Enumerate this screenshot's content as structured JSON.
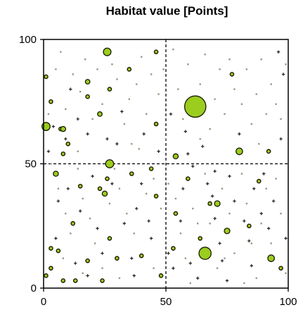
{
  "chart_data": {
    "type": "scatter",
    "title": "Habitat value [Points]",
    "xlabel": "",
    "ylabel": "",
    "xlim": [
      0,
      100
    ],
    "ylim": [
      0,
      100
    ],
    "x_ticks": [
      "0",
      "50",
      "100"
    ],
    "y_ticks": [
      "0",
      "50",
      "100"
    ],
    "reference_lines": [
      {
        "axis": "x",
        "value": 50,
        "style": "dashed"
      },
      {
        "axis": "y",
        "value": 50,
        "style": "dashed"
      }
    ],
    "grid": false,
    "legend": "none",
    "colors": {
      "fill": "#9ACD1E",
      "stroke": "#1a1a00",
      "dark_plus": "#1f1f1a",
      "light_dot": "#9a9a80"
    },
    "series": [
      {
        "marker": "large-circle",
        "points": [
          [
            26,
            95,
            1.5
          ],
          [
            62,
            73,
            4.2
          ],
          [
            1,
            65,
            1.6
          ],
          [
            27,
            50,
            1.6
          ],
          [
            66,
            14,
            2.4
          ],
          [
            80,
            55,
            1.3
          ],
          [
            93,
            12,
            1.3
          ],
          [
            8,
            64,
            1.0
          ],
          [
            71,
            34,
            1.1
          ],
          [
            75,
            23,
            1.1
          ],
          [
            54,
            53,
            1.0
          ],
          [
            5,
            46,
            1.0
          ],
          [
            25,
            38,
            1.0
          ],
          [
            23,
            70,
            0.9
          ],
          [
            18,
            83,
            0.9
          ]
        ]
      },
      {
        "marker": "small-circle",
        "points": [
          [
            1,
            85
          ],
          [
            3,
            75
          ],
          [
            8,
            54
          ],
          [
            10,
            58
          ],
          [
            18,
            77
          ],
          [
            27,
            80
          ],
          [
            46,
            66
          ],
          [
            46,
            37
          ],
          [
            46,
            95
          ],
          [
            77,
            86
          ],
          [
            54,
            30
          ],
          [
            48,
            5
          ],
          [
            23,
            40
          ],
          [
            26,
            44
          ],
          [
            44,
            48
          ],
          [
            7,
            64
          ],
          [
            18,
            11
          ],
          [
            27,
            20
          ],
          [
            30,
            12
          ],
          [
            3,
            16
          ],
          [
            8,
            3
          ],
          [
            13,
            3
          ],
          [
            40,
            13
          ],
          [
            35,
            88
          ],
          [
            15,
            41
          ],
          [
            24,
            3
          ],
          [
            68,
            34
          ],
          [
            53,
            16
          ],
          [
            92,
            55
          ],
          [
            97,
            8
          ],
          [
            1,
            5
          ],
          [
            12,
            26
          ],
          [
            36,
            46
          ],
          [
            88,
            43
          ],
          [
            84,
            25
          ],
          [
            59,
            44
          ],
          [
            64,
            20
          ],
          [
            3,
            8
          ],
          [
            6,
            15
          ]
        ]
      },
      {
        "marker": "plus",
        "points": [
          [
            4,
            65
          ],
          [
            9,
            60
          ],
          [
            2,
            55
          ],
          [
            5,
            20
          ],
          [
            10,
            40
          ],
          [
            14,
            68
          ],
          [
            18,
            62
          ],
          [
            20,
            45
          ],
          [
            15,
            31
          ],
          [
            13,
            10
          ],
          [
            18,
            5
          ],
          [
            22,
            24
          ],
          [
            26,
            60
          ],
          [
            32,
            71
          ],
          [
            33,
            26
          ],
          [
            36,
            12
          ],
          [
            40,
            42
          ],
          [
            43,
            27
          ],
          [
            38,
            32
          ],
          [
            41,
            62
          ],
          [
            44,
            20
          ],
          [
            51,
            14
          ],
          [
            53,
            8
          ],
          [
            56,
            27
          ],
          [
            57,
            40
          ],
          [
            59,
            54
          ],
          [
            60,
            10
          ],
          [
            61,
            49
          ],
          [
            65,
            57
          ],
          [
            67,
            42
          ],
          [
            69,
            37
          ],
          [
            70,
            28
          ],
          [
            72,
            18
          ],
          [
            73,
            11
          ],
          [
            75,
            3
          ],
          [
            76,
            45
          ],
          [
            78,
            35
          ],
          [
            82,
            27
          ],
          [
            84,
            19
          ],
          [
            85,
            9
          ],
          [
            86,
            40
          ],
          [
            89,
            30
          ],
          [
            90,
            46
          ],
          [
            92,
            24
          ],
          [
            94,
            35
          ],
          [
            96,
            95
          ],
          [
            97,
            60
          ],
          [
            98,
            86
          ],
          [
            99,
            20
          ],
          [
            30,
            58
          ],
          [
            28,
            42
          ],
          [
            11,
            80
          ],
          [
            6,
            35
          ],
          [
            24,
            14
          ],
          [
            37,
            5
          ],
          [
            47,
            55
          ],
          [
            52,
            70
          ],
          [
            58,
            63
          ],
          [
            63,
            4
          ],
          [
            70,
            47
          ],
          [
            80,
            62
          ]
        ]
      },
      {
        "marker": "dot",
        "points": [
          [
            2,
            70
          ],
          [
            5,
            88
          ],
          [
            7,
            95
          ],
          [
            9,
            72
          ],
          [
            12,
            86
          ],
          [
            15,
            79
          ],
          [
            17,
            92
          ],
          [
            20,
            68
          ],
          [
            22,
            88
          ],
          [
            24,
            74
          ],
          [
            28,
            90
          ],
          [
            30,
            84
          ],
          [
            33,
            66
          ],
          [
            35,
            76
          ],
          [
            38,
            82
          ],
          [
            40,
            93
          ],
          [
            42,
            70
          ],
          [
            44,
            86
          ],
          [
            47,
            78
          ],
          [
            49,
            88
          ],
          [
            53,
            96
          ],
          [
            55,
            80
          ],
          [
            57,
            68
          ],
          [
            59,
            90
          ],
          [
            64,
            82
          ],
          [
            66,
            94
          ],
          [
            68,
            64
          ],
          [
            70,
            76
          ],
          [
            72,
            88
          ],
          [
            74,
            70
          ],
          [
            76,
            92
          ],
          [
            78,
            80
          ],
          [
            81,
            74
          ],
          [
            83,
            88
          ],
          [
            85,
            66
          ],
          [
            87,
            78
          ],
          [
            89,
            92
          ],
          [
            91,
            70
          ],
          [
            93,
            82
          ],
          [
            95,
            74
          ],
          [
            97,
            68
          ],
          [
            99,
            90
          ],
          [
            3,
            50
          ],
          [
            6,
            40
          ],
          [
            9,
            30
          ],
          [
            11,
            22
          ],
          [
            14,
            48
          ],
          [
            16,
            36
          ],
          [
            19,
            28
          ],
          [
            21,
            18
          ],
          [
            24,
            8
          ],
          [
            27,
            34
          ],
          [
            29,
            48
          ],
          [
            31,
            40
          ],
          [
            34,
            30
          ],
          [
            37,
            22
          ],
          [
            39,
            56
          ],
          [
            42,
            38
          ],
          [
            45,
            44
          ],
          [
            48,
            32
          ],
          [
            51,
            42
          ],
          [
            54,
            36
          ],
          [
            56,
            22
          ],
          [
            58,
            12
          ],
          [
            61,
            32
          ],
          [
            63,
            26
          ],
          [
            66,
            46
          ],
          [
            68,
            26
          ],
          [
            71,
            8
          ],
          [
            73,
            40
          ],
          [
            76,
            30
          ],
          [
            78,
            14
          ],
          [
            81,
            46
          ],
          [
            83,
            34
          ],
          [
            85,
            18
          ],
          [
            87,
            4
          ],
          [
            89,
            26
          ],
          [
            91,
            40
          ],
          [
            93,
            18
          ],
          [
            95,
            44
          ],
          [
            97,
            30
          ],
          [
            99,
            6
          ],
          [
            8,
            12
          ],
          [
            16,
            6
          ],
          [
            31,
            4
          ],
          [
            45,
            8
          ],
          [
            60,
            2
          ],
          [
            74,
            12
          ],
          [
            82,
            2
          ],
          [
            14,
            55
          ],
          [
            36,
            58
          ],
          [
            50,
            60
          ],
          [
            64,
            60
          ],
          [
            88,
            58
          ]
        ]
      }
    ]
  }
}
